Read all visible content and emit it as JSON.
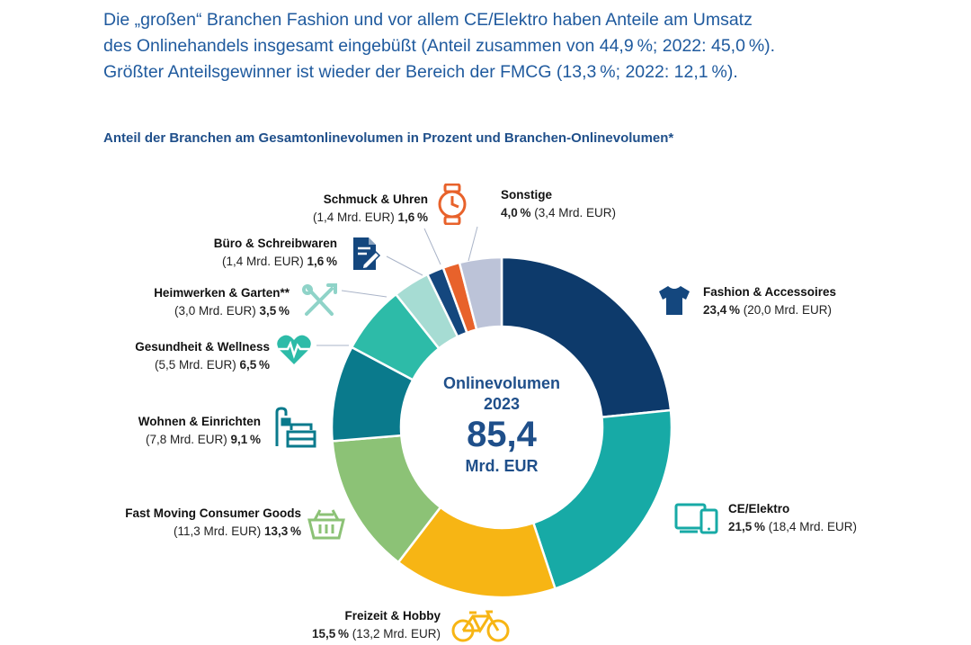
{
  "headline": {
    "line1": "Die „großen“ Branchen Fashion und vor allem CE/Elektro haben Anteile am Umsatz",
    "line2": "des Onlinehandels insgesamt eingebüßt (Anteil zusammen von 44,9 %; 2022: 45,0 %).",
    "line3": "Größter Anteilsgewinner ist wieder der Bereich der FMCG (13,3 %; 2022: 12,1 %)."
  },
  "chart_title": "Anteil der Branchen am Gesamtonlinevolumen in Prozent und Branchen-Onlinevolumen*",
  "center": {
    "line1": "Onlinevolumen",
    "line2": "2023",
    "value": "85,4",
    "unit": "Mrd. EUR"
  },
  "chart_data": {
    "type": "pie",
    "donut": true,
    "start": "top, clockwise",
    "segments": [
      {
        "name": "Fashion & Accessoires",
        "pct": 23.4,
        "pct_label": "23,4 %",
        "vol_label": "(20,0 Mrd. EUR)",
        "color": "#0d3a6b"
      },
      {
        "name": "CE/Elektro",
        "pct": 21.5,
        "pct_label": "21,5 %",
        "vol_label": "(18,4 Mrd. EUR)",
        "color": "#17aaa6"
      },
      {
        "name": "Freizeit & Hobby",
        "pct": 15.5,
        "pct_label": "15,5 %",
        "vol_label": "(13,2 Mrd. EUR)",
        "color": "#f7b514"
      },
      {
        "name": "Fast Moving Consumer Goods",
        "pct": 13.3,
        "pct_label": "13,3 %",
        "vol_label": "(11,3 Mrd. EUR)",
        "color": "#8cc276"
      },
      {
        "name": "Wohnen & Einrichten",
        "pct": 9.1,
        "pct_label": "9,1 %",
        "vol_label": "(7,8 Mrd. EUR)",
        "color": "#0a7a8c"
      },
      {
        "name": "Gesundheit & Wellness",
        "pct": 6.5,
        "pct_label": "6,5 %",
        "vol_label": "(5,5 Mrd. EUR)",
        "color": "#2dbba8"
      },
      {
        "name": "Heimwerken & Garten**",
        "pct": 3.5,
        "pct_label": "3,5 %",
        "vol_label": "(3,0 Mrd. EUR)",
        "color": "#a6dcd3"
      },
      {
        "name": "Büro & Schreibwaren",
        "pct": 1.6,
        "pct_label": "1,6 %",
        "vol_label": "(1,4 Mrd. EUR)",
        "color": "#14477e"
      },
      {
        "name": "Schmuck & Uhren",
        "pct": 1.6,
        "pct_label": "1,6 %",
        "vol_label": "(1,4 Mrd. EUR)",
        "color": "#e8622b"
      },
      {
        "name": "Sonstige",
        "pct": 4.0,
        "pct_label": "4,0 %",
        "vol_label": "(3,4 Mrd. EUR)",
        "color": "#bcc3d8"
      }
    ]
  },
  "icons": [
    "t-shirt-icon",
    "devices-icon",
    "bicycle-icon",
    "basket-icon",
    "sofa-icon",
    "heart-pulse-icon",
    "tools-icon",
    "document-pen-icon",
    "watch-icon"
  ],
  "colors": {
    "headline": "#1f5a9e",
    "icon_navy": "#14477e",
    "icon_teal": "#17aaa6",
    "icon_yellow": "#f7b514",
    "icon_green": "#8cc276",
    "icon_orange": "#e8622b"
  }
}
